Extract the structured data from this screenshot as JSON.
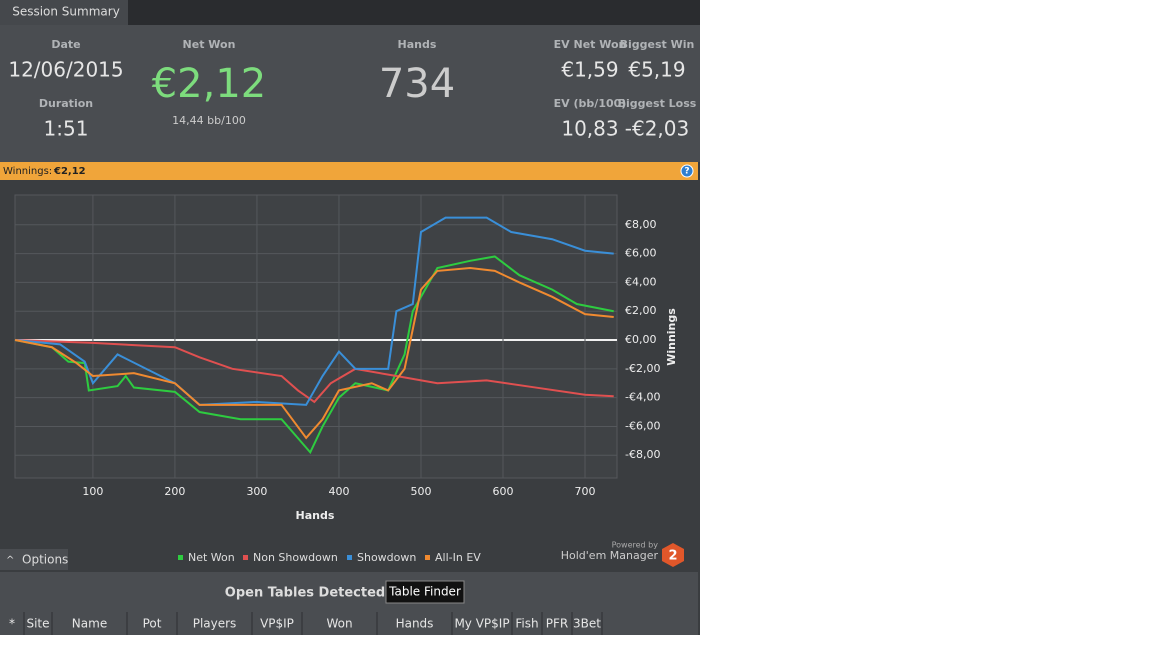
{
  "tab": "Session Summary",
  "summary": {
    "date_label": "Date",
    "date": "12/06/2015",
    "duration_label": "Duration",
    "duration": "1:51",
    "net_won_label": "Net Won",
    "net_won": "€2,12",
    "bb100": "14,44 bb/100",
    "hands_label": "Hands",
    "hands": "734",
    "ev_net_won_label": "EV Net Won",
    "ev_net_won": "€1,59",
    "biggest_win_label": "Biggest Win",
    "biggest_win": "€5,19",
    "ev_bb100_label": "EV (bb/100)",
    "ev_bb100": "10,83",
    "biggest_loss_label": "Biggest Loss",
    "biggest_loss": "-€2,03"
  },
  "winnings_bar": {
    "label": "Winnings:",
    "value": "€2,12"
  },
  "chart_data": {
    "type": "line",
    "xlabel": "Hands",
    "ylabel": "Winnings",
    "xlim": [
      5,
      739
    ],
    "ylim": [
      -9.58,
      10.07
    ],
    "xticks": [
      100,
      200,
      300,
      400,
      500,
      600,
      700
    ],
    "yticks": [
      {
        "value": -8,
        "label": "-€8,00"
      },
      {
        "value": -6,
        "label": "-€6,00"
      },
      {
        "value": -4,
        "label": "-€4,00"
      },
      {
        "value": -2,
        "label": "-€2,00"
      },
      {
        "value": 0,
        "label": "€0,00"
      },
      {
        "value": 2,
        "label": "€2,00"
      },
      {
        "value": 4,
        "label": "€4,00"
      },
      {
        "value": 6,
        "label": "€6,00"
      },
      {
        "value": 8,
        "label": "€8,00"
      }
    ],
    "grid": true,
    "legend": "bottom",
    "series": [
      {
        "name": "Net Won",
        "color": "#2ecc40",
        "x": [
          5,
          50,
          70,
          90,
          95,
          130,
          140,
          150,
          200,
          230,
          280,
          330,
          365,
          380,
          400,
          420,
          460,
          480,
          490,
          520,
          560,
          590,
          620,
          660,
          690,
          735
        ],
        "values": [
          0,
          -0.5,
          -1.5,
          -1.6,
          -3.5,
          -3.2,
          -2.5,
          -3.3,
          -3.6,
          -5,
          -5.5,
          -5.5,
          -7.8,
          -6,
          -4,
          -3,
          -3.5,
          -1,
          2,
          5,
          5.5,
          5.8,
          4.5,
          3.5,
          2.5,
          2
        ]
      },
      {
        "name": "Non Showdown",
        "color": "#e05050",
        "x": [
          5,
          100,
          200,
          230,
          270,
          330,
          350,
          370,
          390,
          420,
          470,
          520,
          580,
          640,
          700,
          735
        ],
        "values": [
          0,
          -0.2,
          -0.5,
          -1.2,
          -2,
          -2.5,
          -3.5,
          -4.3,
          -3,
          -2,
          -2.5,
          -3,
          -2.8,
          -3.3,
          -3.8,
          -3.9
        ]
      },
      {
        "name": "Showdown",
        "color": "#3a8fd8",
        "x": [
          5,
          60,
          90,
          100,
          130,
          200,
          230,
          300,
          360,
          370,
          380,
          400,
          420,
          460,
          470,
          490,
          500,
          530,
          580,
          610,
          660,
          700,
          735
        ],
        "values": [
          0,
          -0.3,
          -1.5,
          -3,
          -1,
          -3,
          -4.5,
          -4.3,
          -4.5,
          -3.5,
          -2.5,
          -0.8,
          -2,
          -2,
          2,
          2.5,
          7.5,
          8.5,
          8.5,
          7.5,
          7,
          6.2,
          6
        ]
      },
      {
        "name": "All-In EV",
        "color": "#f08a30",
        "x": [
          5,
          50,
          80,
          100,
          150,
          200,
          230,
          280,
          330,
          360,
          380,
          400,
          440,
          460,
          480,
          500,
          520,
          560,
          590,
          620,
          660,
          700,
          735
        ],
        "values": [
          0,
          -0.5,
          -1.6,
          -2.5,
          -2.3,
          -3,
          -4.5,
          -4.5,
          -4.5,
          -6.8,
          -5.5,
          -3.5,
          -3,
          -3.5,
          -2,
          3.5,
          4.8,
          5,
          4.8,
          4,
          3,
          1.8,
          1.6
        ]
      }
    ]
  },
  "options": "Options",
  "powered_by": "Powered by",
  "brand": "Hold'em Manager",
  "brand_number": "2",
  "open_tables": {
    "title": "Open Tables Detected",
    "button": "Table Finder",
    "columns": [
      "*",
      "Site",
      "Name",
      "Pot",
      "Players",
      "VP$IP",
      "Won",
      "Hands",
      "My VP$IP",
      "Fish",
      "PFR",
      "3Bet"
    ]
  }
}
